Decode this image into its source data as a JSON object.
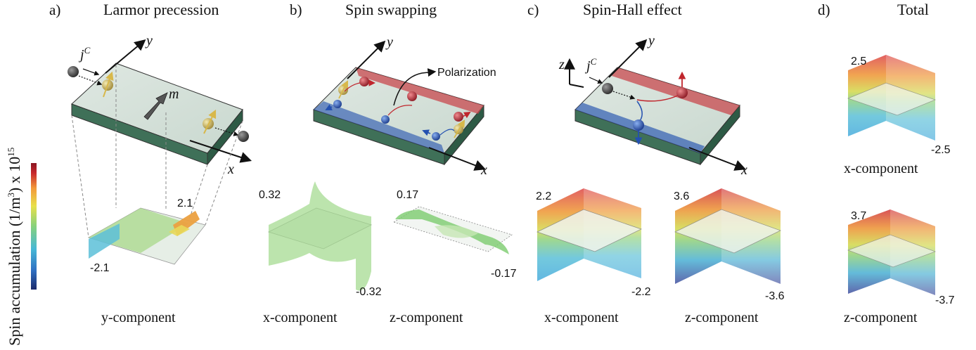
{
  "colorbar": {
    "label_pre": "Spin accumulation (1/m",
    "label_sup": "3",
    "label_post": ") x 10",
    "label_exp": "15",
    "colors": [
      "#1b2a6b",
      "#2f6fc2",
      "#46b8d6",
      "#86d17c",
      "#e8e04a",
      "#f39a3a",
      "#c8282c",
      "#8a1522"
    ]
  },
  "panels": [
    {
      "letter": "a)",
      "title": "Larmor precession",
      "current_label": "j",
      "current_sup": "C",
      "magnet_label": "m",
      "axis_y": "y",
      "axis_x": "x",
      "plots": [
        {
          "component": "y-component",
          "max": "2.1",
          "min": "-2.1"
        }
      ]
    },
    {
      "letter": "b)",
      "title": "Spin swapping",
      "polarization_label": "Polarization",
      "axis_y": "y",
      "axis_x": "x",
      "plots": [
        {
          "component": "x-component",
          "max": "0.32",
          "min": "-0.32"
        },
        {
          "component": "z-component",
          "max": "0.17",
          "min": "-0.17"
        }
      ]
    },
    {
      "letter": "c)",
      "title": "Spin-Hall effect",
      "current_label": "j",
      "current_sup": "C",
      "axis_z": "z",
      "axis_y": "y",
      "axis_x": "x",
      "plots": [
        {
          "component": "x-component",
          "max": "2.2",
          "min": "-2.2"
        },
        {
          "component": "z-component",
          "max": "3.6",
          "min": "-3.6"
        }
      ]
    },
    {
      "letter": "d)",
      "title": "Total",
      "plots": [
        {
          "component": "x-component",
          "max": "2.5",
          "min": "-2.5"
        },
        {
          "component": "z-component",
          "max": "3.7",
          "min": "-3.7"
        }
      ]
    }
  ],
  "icons": {
    "electron_dark": "electron-dark-icon",
    "electron_gold": "electron-gold-icon",
    "electron_red": "electron-red-icon",
    "electron_blue": "electron-blue-icon",
    "magnetization_arrow": "magnetization-arrow-icon"
  }
}
